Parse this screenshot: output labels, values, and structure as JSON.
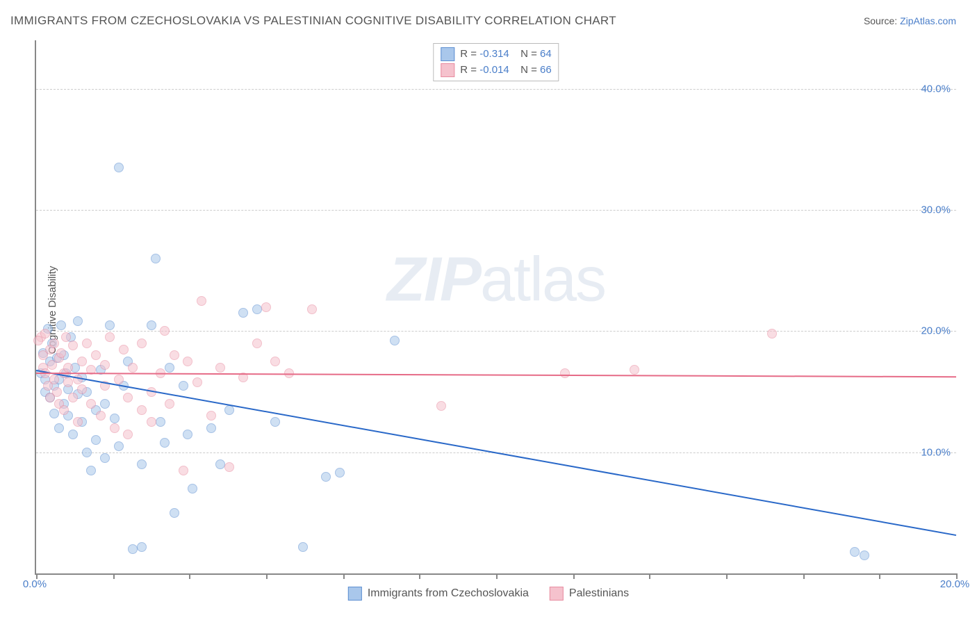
{
  "title": "IMMIGRANTS FROM CZECHOSLOVAKIA VS PALESTINIAN COGNITIVE DISABILITY CORRELATION CHART",
  "source_label": "Source:",
  "source_link": "ZipAtlas.com",
  "ylabel": "Cognitive Disability",
  "watermark_bold": "ZIP",
  "watermark_light": "atlas",
  "chart": {
    "type": "scatter",
    "xlim": [
      0,
      20
    ],
    "ylim": [
      0,
      44
    ],
    "x_ticks": [
      0,
      1.67,
      3.33,
      5,
      6.67,
      8.33,
      10,
      11.67,
      13.33,
      15,
      16.67,
      18.33,
      20
    ],
    "x_tick_labels": {
      "0": "0.0%",
      "20": "20.0%"
    },
    "y_gridlines": [
      10,
      20,
      30,
      40
    ],
    "y_tick_labels": {
      "10": "10.0%",
      "20": "20.0%",
      "30": "30.0%",
      "40": "40.0%"
    },
    "background_color": "#ffffff",
    "grid_color": "#cccccc",
    "axis_color": "#888888",
    "tick_label_color": "#4a7ec9",
    "point_radius": 7,
    "point_opacity": 0.55
  },
  "series": [
    {
      "name": "Immigrants from Czechoslovakia",
      "fill": "#a9c7eb",
      "stroke": "#5d8fd1",
      "line_color": "#2968c8",
      "R": "-0.314",
      "N": "64",
      "trend": {
        "x1": 0,
        "y1": 16.8,
        "x2": 20,
        "y2": 3.2
      },
      "points": [
        [
          0.1,
          16.5
        ],
        [
          0.15,
          18.2
        ],
        [
          0.2,
          15.0
        ],
        [
          0.2,
          16.0
        ],
        [
          0.25,
          20.2
        ],
        [
          0.3,
          14.5
        ],
        [
          0.3,
          17.5
        ],
        [
          0.35,
          19.0
        ],
        [
          0.4,
          15.5
        ],
        [
          0.4,
          13.2
        ],
        [
          0.45,
          17.8
        ],
        [
          0.5,
          16.0
        ],
        [
          0.5,
          12.0
        ],
        [
          0.55,
          20.5
        ],
        [
          0.6,
          14.0
        ],
        [
          0.6,
          18.0
        ],
        [
          0.65,
          16.5
        ],
        [
          0.7,
          13.0
        ],
        [
          0.7,
          15.2
        ],
        [
          0.75,
          19.5
        ],
        [
          0.8,
          11.5
        ],
        [
          0.85,
          17.0
        ],
        [
          0.9,
          14.8
        ],
        [
          0.9,
          20.8
        ],
        [
          1.0,
          12.5
        ],
        [
          1.0,
          16.2
        ],
        [
          1.1,
          10.0
        ],
        [
          1.1,
          15.0
        ],
        [
          1.2,
          8.5
        ],
        [
          1.3,
          13.5
        ],
        [
          1.3,
          11.0
        ],
        [
          1.4,
          16.8
        ],
        [
          1.5,
          9.5
        ],
        [
          1.5,
          14.0
        ],
        [
          1.6,
          20.5
        ],
        [
          1.7,
          12.8
        ],
        [
          1.8,
          33.5
        ],
        [
          1.8,
          10.5
        ],
        [
          1.9,
          15.5
        ],
        [
          2.0,
          17.5
        ],
        [
          2.1,
          2.0
        ],
        [
          2.3,
          9.0
        ],
        [
          2.3,
          2.2
        ],
        [
          2.5,
          20.5
        ],
        [
          2.6,
          26.0
        ],
        [
          2.7,
          12.5
        ],
        [
          2.8,
          10.8
        ],
        [
          2.9,
          17.0
        ],
        [
          3.0,
          5.0
        ],
        [
          3.2,
          15.5
        ],
        [
          3.3,
          11.5
        ],
        [
          3.4,
          7.0
        ],
        [
          3.8,
          12.0
        ],
        [
          4.0,
          9.0
        ],
        [
          4.2,
          13.5
        ],
        [
          4.5,
          21.5
        ],
        [
          4.8,
          21.8
        ],
        [
          5.2,
          12.5
        ],
        [
          5.8,
          2.2
        ],
        [
          6.3,
          8.0
        ],
        [
          6.6,
          8.3
        ],
        [
          7.8,
          19.2
        ],
        [
          18.0,
          1.5
        ],
        [
          17.8,
          1.8
        ]
      ]
    },
    {
      "name": "Palestinians",
      "fill": "#f5c2cd",
      "stroke": "#e88ca0",
      "line_color": "#e66b87",
      "R": "-0.014",
      "N": "66",
      "trend": {
        "x1": 0,
        "y1": 16.6,
        "x2": 20,
        "y2": 16.3
      },
      "points": [
        [
          0.1,
          19.5
        ],
        [
          0.15,
          18.0
        ],
        [
          0.15,
          17.0
        ],
        [
          0.2,
          16.5
        ],
        [
          0.2,
          19.8
        ],
        [
          0.25,
          15.5
        ],
        [
          0.3,
          18.5
        ],
        [
          0.3,
          14.5
        ],
        [
          0.35,
          17.2
        ],
        [
          0.4,
          16.0
        ],
        [
          0.4,
          19.0
        ],
        [
          0.45,
          15.0
        ],
        [
          0.5,
          17.8
        ],
        [
          0.5,
          14.0
        ],
        [
          0.55,
          18.2
        ],
        [
          0.6,
          16.5
        ],
        [
          0.6,
          13.5
        ],
        [
          0.65,
          19.5
        ],
        [
          0.7,
          15.8
        ],
        [
          0.7,
          17.0
        ],
        [
          0.8,
          14.5
        ],
        [
          0.8,
          18.8
        ],
        [
          0.9,
          16.0
        ],
        [
          0.9,
          12.5
        ],
        [
          1.0,
          17.5
        ],
        [
          1.0,
          15.2
        ],
        [
          1.1,
          19.0
        ],
        [
          1.2,
          14.0
        ],
        [
          1.2,
          16.8
        ],
        [
          1.3,
          18.0
        ],
        [
          1.4,
          13.0
        ],
        [
          1.5,
          17.2
        ],
        [
          1.5,
          15.5
        ],
        [
          1.6,
          19.5
        ],
        [
          1.7,
          12.0
        ],
        [
          1.8,
          16.0
        ],
        [
          1.9,
          18.5
        ],
        [
          2.0,
          14.5
        ],
        [
          2.0,
          11.5
        ],
        [
          2.1,
          17.0
        ],
        [
          2.3,
          13.5
        ],
        [
          2.3,
          19.0
        ],
        [
          2.5,
          15.0
        ],
        [
          2.5,
          12.5
        ],
        [
          2.7,
          16.5
        ],
        [
          2.8,
          20.0
        ],
        [
          2.9,
          14.0
        ],
        [
          3.0,
          18.0
        ],
        [
          3.2,
          8.5
        ],
        [
          3.3,
          17.5
        ],
        [
          3.5,
          15.8
        ],
        [
          3.6,
          22.5
        ],
        [
          3.8,
          13.0
        ],
        [
          4.0,
          17.0
        ],
        [
          4.2,
          8.8
        ],
        [
          4.5,
          16.2
        ],
        [
          4.8,
          19.0
        ],
        [
          5.0,
          22.0
        ],
        [
          5.2,
          17.5
        ],
        [
          5.5,
          16.5
        ],
        [
          6.0,
          21.8
        ],
        [
          8.8,
          13.8
        ],
        [
          11.5,
          16.5
        ],
        [
          13.0,
          16.8
        ],
        [
          16.0,
          19.8
        ],
        [
          0.05,
          19.2
        ]
      ]
    }
  ],
  "legend_bottom": [
    {
      "swatch_fill": "#a9c7eb",
      "swatch_stroke": "#5d8fd1",
      "label": "Immigrants from Czechoslovakia"
    },
    {
      "swatch_fill": "#f5c2cd",
      "swatch_stroke": "#e88ca0",
      "label": "Palestinians"
    }
  ]
}
